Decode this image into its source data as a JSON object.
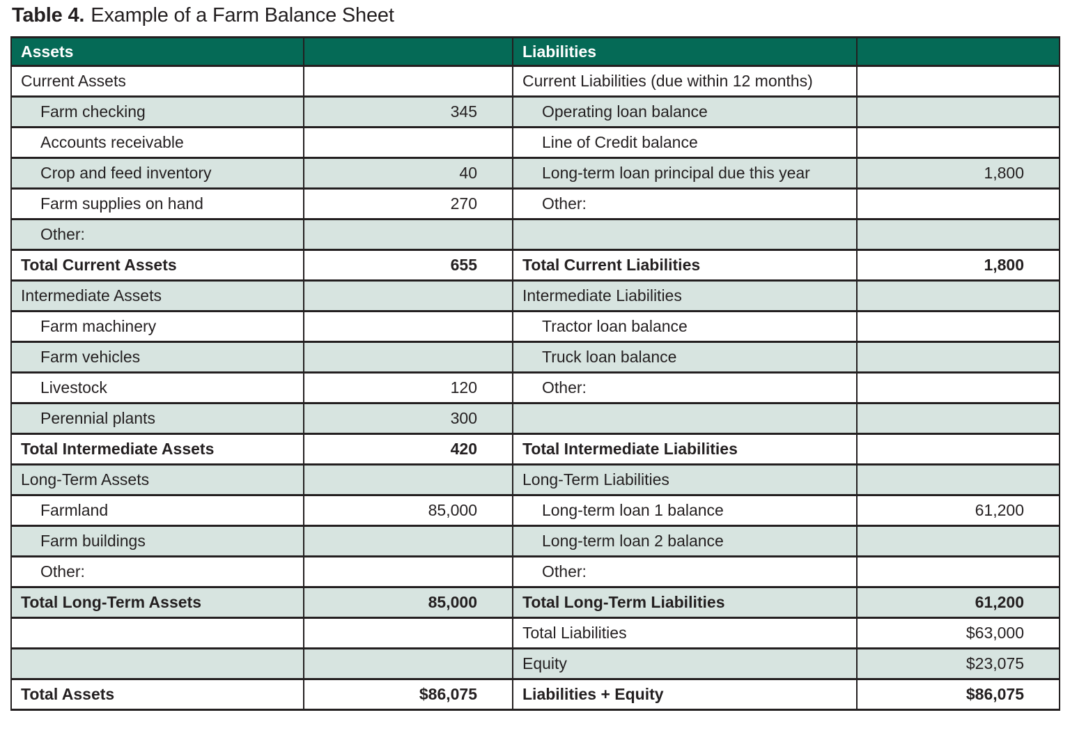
{
  "title": {
    "prefix": "Table 4.",
    "rest": "Example of a Farm Balance Sheet"
  },
  "colors": {
    "header_bg": "#056a56",
    "shade_bg": "#d7e4e0",
    "border": "#231f20",
    "header_text": "#ffffff"
  },
  "table": {
    "header": {
      "assets": "Assets",
      "assets_value": "",
      "liabilities": "Liabilities",
      "liabilities_value": ""
    },
    "rows": [
      {
        "shade": false,
        "a_label": "Current Assets",
        "a_indent": false,
        "a_bold": false,
        "a_value": "",
        "l_label": "Current Liabilities (due within 12 months)",
        "l_indent": false,
        "l_bold": false,
        "l_value": ""
      },
      {
        "shade": true,
        "a_label": "Farm checking",
        "a_indent": true,
        "a_bold": false,
        "a_value": "345",
        "l_label": "Operating loan balance",
        "l_indent": true,
        "l_bold": false,
        "l_value": ""
      },
      {
        "shade": false,
        "a_label": "Accounts receivable",
        "a_indent": true,
        "a_bold": false,
        "a_value": "",
        "l_label": "Line of Credit balance",
        "l_indent": true,
        "l_bold": false,
        "l_value": ""
      },
      {
        "shade": true,
        "a_label": "Crop and feed inventory",
        "a_indent": true,
        "a_bold": false,
        "a_value": "40",
        "l_label": "Long-term loan principal due this year",
        "l_indent": true,
        "l_bold": false,
        "l_value": "1,800"
      },
      {
        "shade": false,
        "a_label": "Farm supplies on hand",
        "a_indent": true,
        "a_bold": false,
        "a_value": "270",
        "l_label": "Other:",
        "l_indent": true,
        "l_bold": false,
        "l_value": ""
      },
      {
        "shade": true,
        "a_label": "Other:",
        "a_indent": true,
        "a_bold": false,
        "a_value": "",
        "l_label": "",
        "l_indent": false,
        "l_bold": false,
        "l_value": ""
      },
      {
        "shade": false,
        "a_label": "Total Current Assets",
        "a_indent": false,
        "a_bold": true,
        "a_value": "655",
        "l_label": "Total Current Liabilities",
        "l_indent": false,
        "l_bold": true,
        "l_value": "1,800"
      },
      {
        "shade": true,
        "a_label": "Intermediate Assets",
        "a_indent": false,
        "a_bold": false,
        "a_value": "",
        "l_label": "Intermediate Liabilities",
        "l_indent": false,
        "l_bold": false,
        "l_value": ""
      },
      {
        "shade": false,
        "a_label": "Farm machinery",
        "a_indent": true,
        "a_bold": false,
        "a_value": "",
        "l_label": "Tractor loan balance",
        "l_indent": true,
        "l_bold": false,
        "l_value": ""
      },
      {
        "shade": true,
        "a_label": "Farm vehicles",
        "a_indent": true,
        "a_bold": false,
        "a_value": "",
        "l_label": "Truck loan balance",
        "l_indent": true,
        "l_bold": false,
        "l_value": ""
      },
      {
        "shade": false,
        "a_label": "Livestock",
        "a_indent": true,
        "a_bold": false,
        "a_value": "120",
        "l_label": "Other:",
        "l_indent": true,
        "l_bold": false,
        "l_value": ""
      },
      {
        "shade": true,
        "a_label": "Perennial plants",
        "a_indent": true,
        "a_bold": false,
        "a_value": "300",
        "l_label": "",
        "l_indent": false,
        "l_bold": false,
        "l_value": ""
      },
      {
        "shade": false,
        "a_label": "Total Intermediate Assets",
        "a_indent": false,
        "a_bold": true,
        "a_value": "420",
        "l_label": "Total Intermediate Liabilities",
        "l_indent": false,
        "l_bold": true,
        "l_value": ""
      },
      {
        "shade": true,
        "a_label": "Long-Term Assets",
        "a_indent": false,
        "a_bold": false,
        "a_value": "",
        "l_label": "Long-Term Liabilities",
        "l_indent": false,
        "l_bold": false,
        "l_value": ""
      },
      {
        "shade": false,
        "a_label": "Farmland",
        "a_indent": true,
        "a_bold": false,
        "a_value": "85,000",
        "l_label": "Long-term loan 1 balance",
        "l_indent": true,
        "l_bold": false,
        "l_value": "61,200"
      },
      {
        "shade": true,
        "a_label": "Farm buildings",
        "a_indent": true,
        "a_bold": false,
        "a_value": "",
        "l_label": "Long-term loan 2 balance",
        "l_indent": true,
        "l_bold": false,
        "l_value": ""
      },
      {
        "shade": false,
        "a_label": "Other:",
        "a_indent": true,
        "a_bold": false,
        "a_value": "",
        "l_label": "Other:",
        "l_indent": true,
        "l_bold": false,
        "l_value": ""
      },
      {
        "shade": true,
        "a_label": "Total Long-Term Assets",
        "a_indent": false,
        "a_bold": true,
        "a_value": "85,000",
        "l_label": "Total Long-Term Liabilities",
        "l_indent": false,
        "l_bold": true,
        "l_value": "61,200"
      },
      {
        "shade": false,
        "a_label": "",
        "a_indent": false,
        "a_bold": false,
        "a_value": "",
        "l_label": "Total Liabilities",
        "l_indent": false,
        "l_bold": false,
        "l_value": "$63,000"
      },
      {
        "shade": true,
        "a_label": "",
        "a_indent": false,
        "a_bold": false,
        "a_value": "",
        "l_label": "Equity",
        "l_indent": false,
        "l_bold": false,
        "l_value": "$23,075"
      },
      {
        "shade": false,
        "a_label": "Total Assets",
        "a_indent": false,
        "a_bold": true,
        "a_value": "$86,075",
        "l_label": "Liabilities + Equity",
        "l_indent": false,
        "l_bold": true,
        "l_value": "$86,075"
      }
    ]
  }
}
